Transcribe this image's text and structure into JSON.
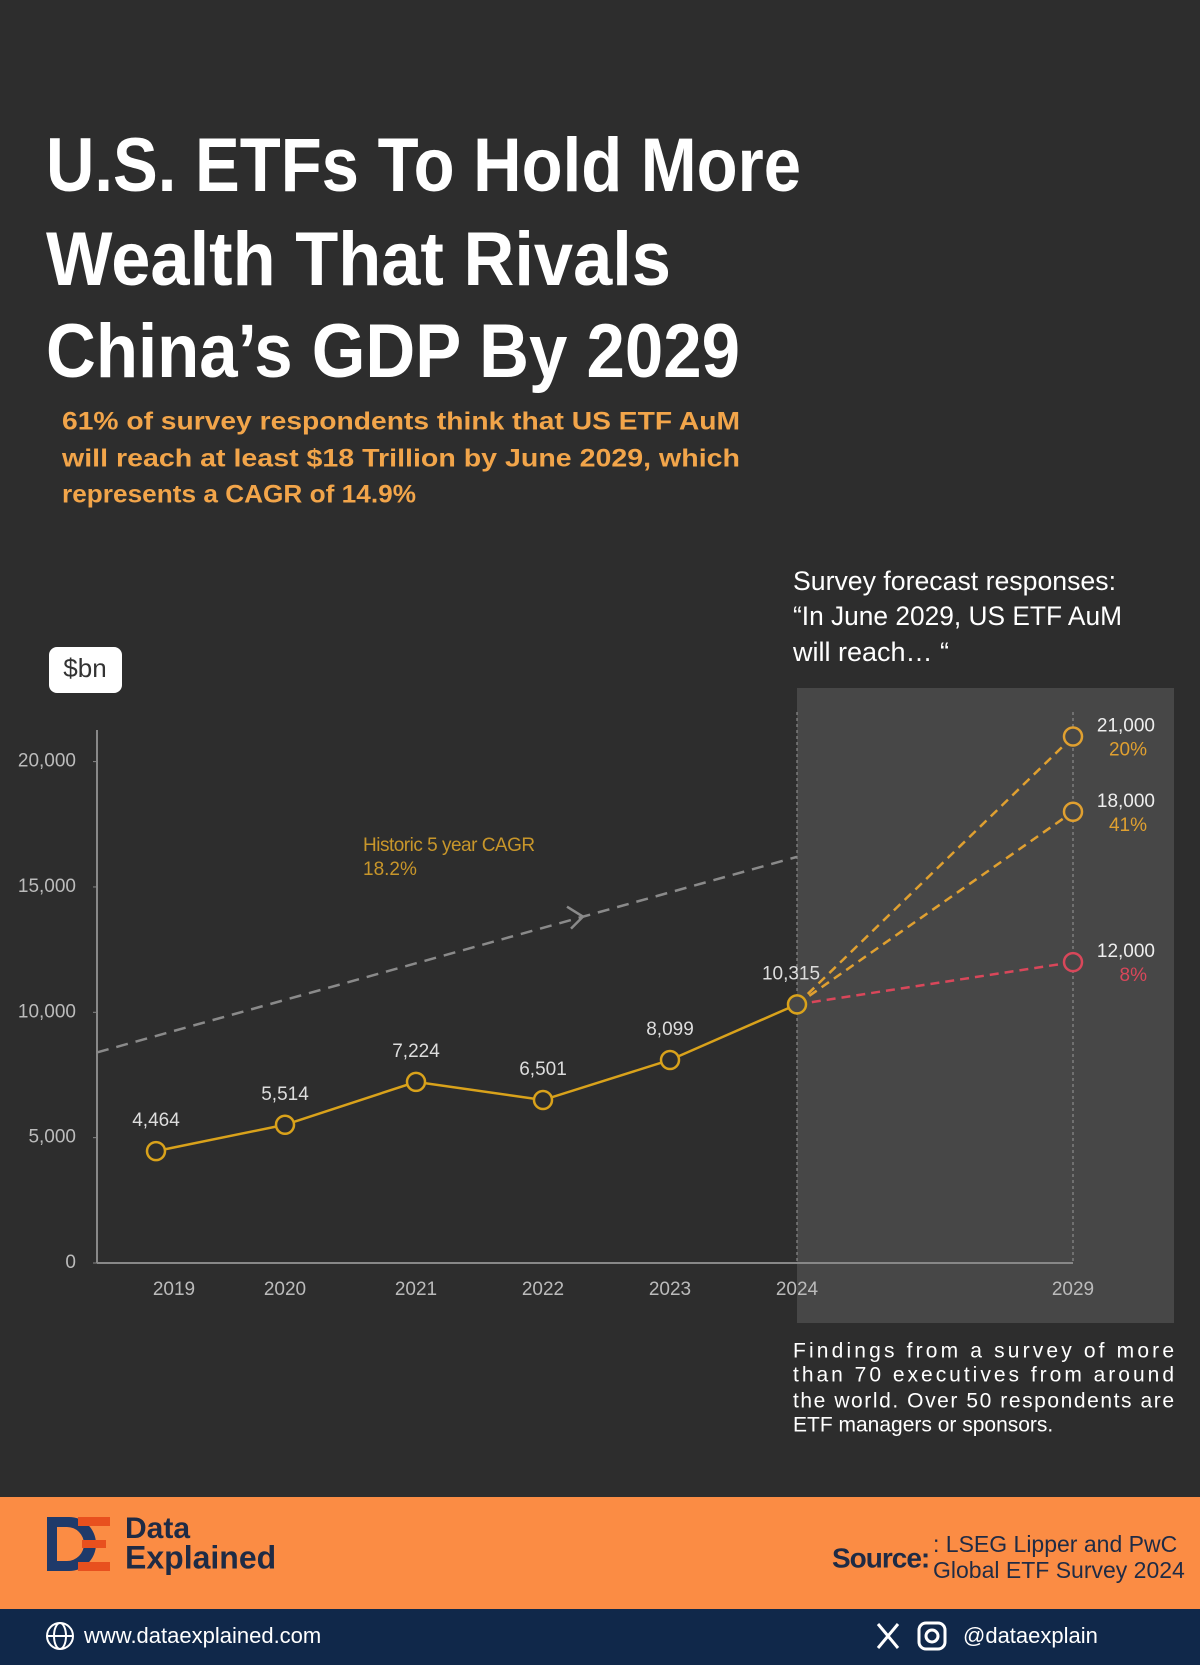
{
  "header": {
    "title": [
      "U.S. ETFs To Hold More",
      "Wealth That Rivals",
      "China’s GDP By 2029"
    ],
    "subtitle": [
      "61% of survey respondents think that US ETF AuM",
      "will reach at least $18 Trillion by June 2029, which",
      "represents a CAGR of 14.9%"
    ]
  },
  "chart_data": {
    "type": "line",
    "unit_label": "$bn",
    "categories": [
      "2019",
      "2020",
      "2021",
      "2022",
      "2023",
      "2024",
      "2029"
    ],
    "series": [
      {
        "color": "#d9a21b",
        "values": [
          4464,
          5514,
          7224,
          6501,
          8099,
          10315,
          null
        ],
        "value_labels": [
          "4,464",
          "5,514",
          "7,224",
          "6,501",
          "8,099",
          "10,315",
          null
        ]
      }
    ],
    "forecast_heading": [
      "Survey forecast responses:",
      "“In June 2029, US ETF AuM",
      "will reach… “"
    ],
    "forecasts": [
      {
        "value": 21000,
        "value_label": "21,000",
        "share": 20,
        "share_label": "20%",
        "color": "#e0a030"
      },
      {
        "value": 18000,
        "value_label": "18,000",
        "share": 41,
        "share_label": "41%",
        "color": "#e0a030"
      },
      {
        "value": 12000,
        "value_label": "12,000",
        "share": 8,
        "share_label": "8%",
        "color": "#d9475a"
      }
    ],
    "trend": {
      "label": "Historic 5 year CAGR",
      "rate_label": "18.2%",
      "values": [
        8400,
        16200
      ],
      "color": "#8a8a8a"
    },
    "ylim": [
      0,
      21500
    ],
    "yticks": [
      0,
      {
        "value": 5000,
        "label": "5,000"
      },
      {
        "value": 10000,
        "label": "10,000"
      },
      {
        "value": 15000,
        "label": "15,000"
      },
      {
        "value": 20000,
        "label": "20,000"
      }
    ],
    "footnote": [
      "Findings from a survey of more",
      "than 70 executives from around",
      "the world. Over 50  respondents are",
      "ETF managers or sponsors."
    ]
  },
  "footer": {
    "brand": [
      "Data",
      "Explained"
    ],
    "source_label": "Source:",
    "source": [
      ": LSEG Lipper and PwC",
      "Global ETF Survey 2024"
    ],
    "website": "www.dataexplained.com",
    "handle": "@dataexplain"
  }
}
